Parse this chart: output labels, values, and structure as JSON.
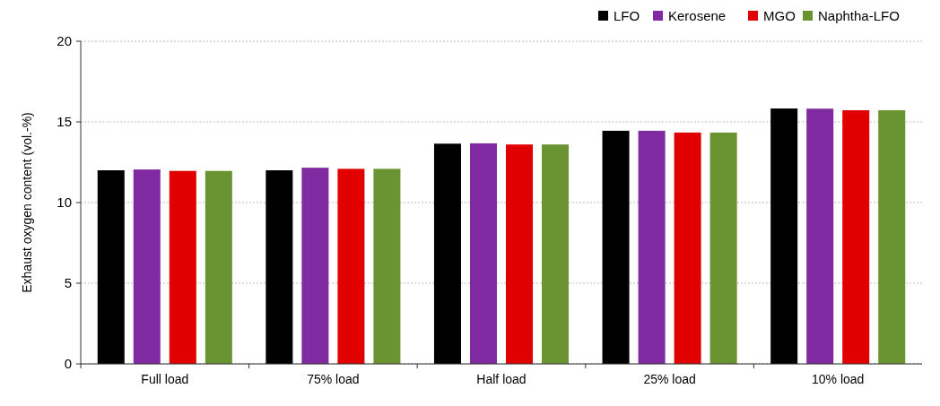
{
  "chart_data": {
    "type": "bar",
    "ylabel": "Exhaust oxygen content (vol.-%)",
    "categories": [
      "Full load",
      "75% load",
      "Half load",
      "25% load",
      "10% load"
    ],
    "series": [
      {
        "name": "LFO",
        "color": "#000000",
        "values": [
          12.0,
          12.0,
          13.65,
          14.45,
          15.83
        ]
      },
      {
        "name": "Kerosene",
        "color": "#7f2aa0",
        "values": [
          12.05,
          12.16,
          13.67,
          14.45,
          15.82
        ]
      },
      {
        "name": "MGO",
        "color": "#e00000",
        "values": [
          11.96,
          12.09,
          13.6,
          14.34,
          15.72
        ]
      },
      {
        "name": "Naphtha-LFO",
        "color": "#6a9431",
        "values": [
          11.96,
          12.09,
          13.6,
          14.34,
          15.72
        ]
      }
    ],
    "ylim": [
      0,
      20
    ],
    "yticks": [
      0,
      5,
      10,
      15,
      20
    ],
    "grid": "y",
    "legend": "top right"
  }
}
